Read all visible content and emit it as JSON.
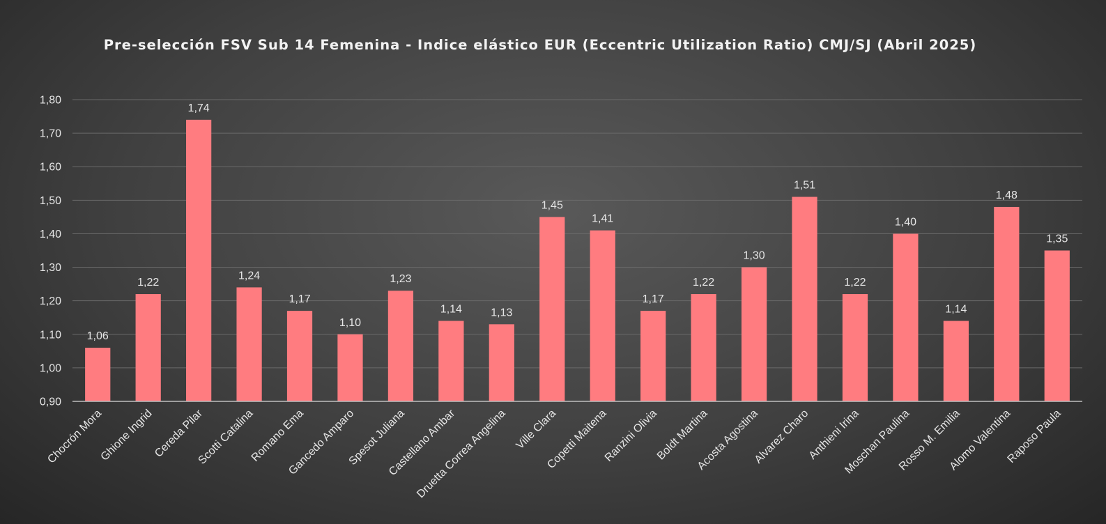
{
  "chart_data": {
    "type": "bar",
    "title": "Pre-selección FSV Sub 14 Femenina - Indice elástico EUR (Eccentric Utilization Ratio) CMJ/SJ (Abril 2025)",
    "xlabel": "",
    "ylabel": "",
    "categories": [
      "Chocrón Mora",
      "Ghione Ingrid",
      "Cereda Pilar",
      "Scotti Catalina",
      "Romano Ema",
      "Gancedo Amparo",
      "Spesot Juliana",
      "Castellano Ambar",
      "Druetta Correa Angelina",
      "Ville Clara",
      "Copetti Maitena",
      "Ranzini Olivia",
      "Boldt Martina",
      "Acosta Agostina",
      "Alvarez Charo",
      "Anthieni Irina",
      "Moschan Paulina",
      "Rosso M. Emilia",
      "Alomo Valentina",
      "Raposo Paula"
    ],
    "values": [
      1.06,
      1.22,
      1.74,
      1.24,
      1.17,
      1.1,
      1.23,
      1.14,
      1.13,
      1.45,
      1.41,
      1.17,
      1.22,
      1.3,
      1.51,
      1.22,
      1.4,
      1.14,
      1.48,
      1.35
    ],
    "data_labels": [
      "1,06",
      "1,22",
      "1,74",
      "1,24",
      "1,17",
      "1,10",
      "1,23",
      "1,14",
      "1,13",
      "1,45",
      "1,41",
      "1,17",
      "1,22",
      "1,30",
      "1,51",
      "1,22",
      "1,40",
      "1,14",
      "1,48",
      "1,35"
    ],
    "ylim": [
      0.9,
      1.8
    ],
    "yticks": [
      0.9,
      1.0,
      1.1,
      1.2,
      1.3,
      1.4,
      1.5,
      1.6,
      1.7,
      1.8
    ],
    "ytick_labels": [
      "0,90",
      "1,00",
      "1,10",
      "1,20",
      "1,30",
      "1,40",
      "1,50",
      "1,60",
      "1,70",
      "1,80"
    ],
    "grid": true,
    "legend": "none",
    "bar_color": "#ff7c80"
  }
}
